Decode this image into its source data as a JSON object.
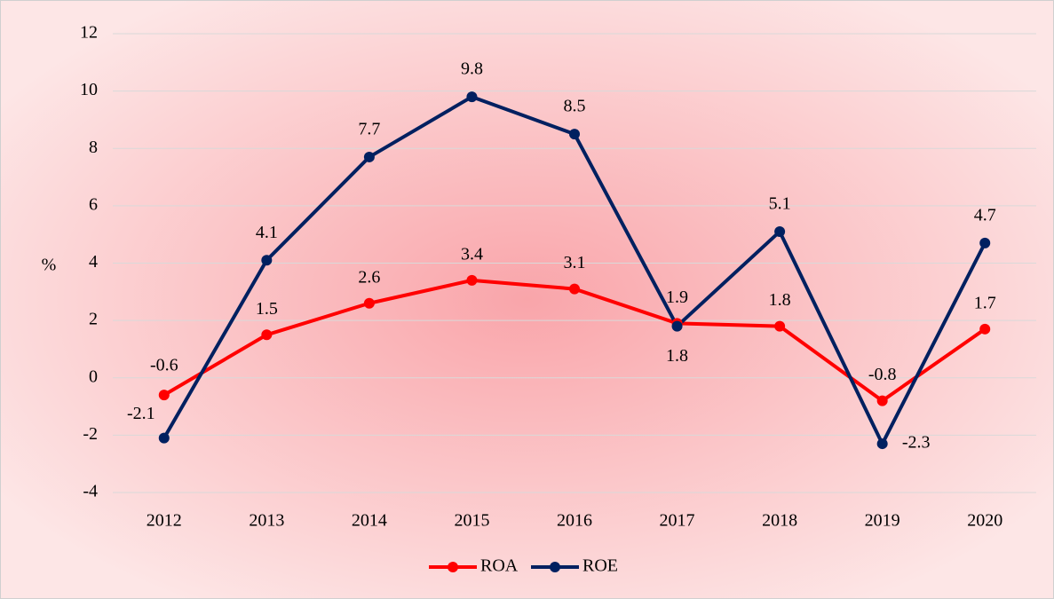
{
  "chart_data": {
    "type": "line",
    "y_label": "%",
    "categories": [
      "2012",
      "2013",
      "2014",
      "2015",
      "2016",
      "2017",
      "2018",
      "2019",
      "2020"
    ],
    "series": [
      {
        "name": "ROA",
        "color": "#ff0000",
        "values": [
          -0.6,
          1.5,
          2.6,
          3.4,
          3.1,
          1.9,
          1.8,
          -0.8,
          1.7
        ]
      },
      {
        "name": "ROE",
        "color": "#002060",
        "values": [
          -2.1,
          4.1,
          7.7,
          9.8,
          8.5,
          1.8,
          5.1,
          -2.3,
          4.7
        ]
      }
    ],
    "ylim": [
      -4,
      12
    ],
    "yticks": [
      -4,
      -2,
      0,
      2,
      4,
      6,
      8,
      10,
      12
    ],
    "grid": true,
    "legend": "bottom"
  }
}
